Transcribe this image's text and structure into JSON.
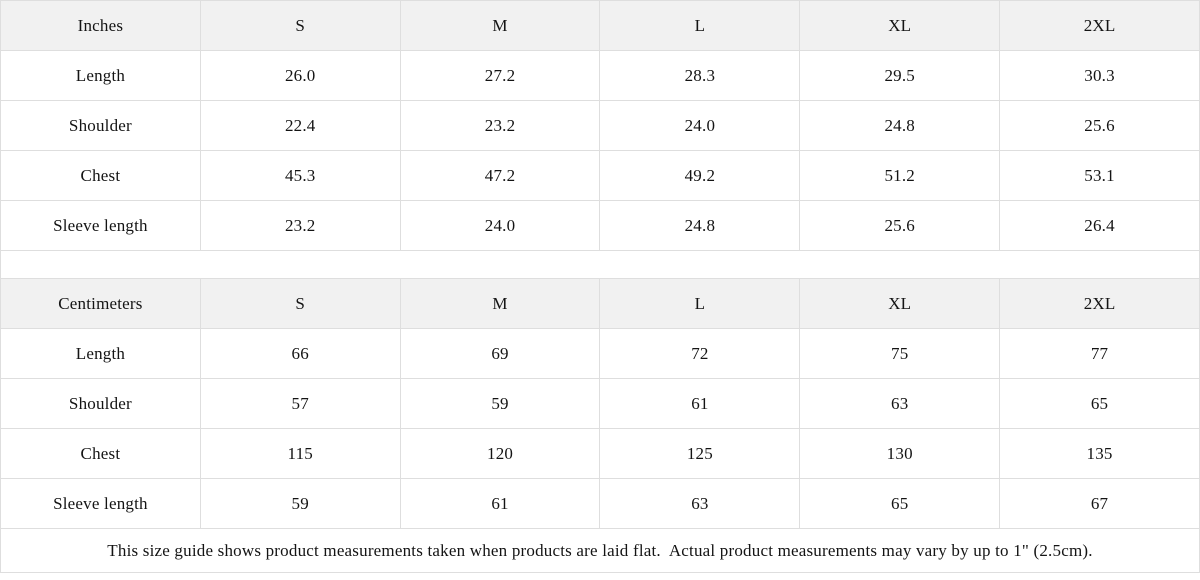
{
  "chart_data": [
    {
      "type": "table",
      "title": "Inches",
      "columns": [
        "Inches",
        "S",
        "M",
        "L",
        "XL",
        "2XL"
      ],
      "rows": [
        [
          "Length",
          "26.0",
          "27.2",
          "28.3",
          "29.5",
          "30.3"
        ],
        [
          "Shoulder",
          "22.4",
          "23.2",
          "24.0",
          "24.8",
          "25.6"
        ],
        [
          "Chest",
          "45.3",
          "47.2",
          "49.2",
          "51.2",
          "53.1"
        ],
        [
          "Sleeve length",
          "23.2",
          "24.0",
          "24.8",
          "25.6",
          "26.4"
        ]
      ]
    },
    {
      "type": "table",
      "title": "Centimeters",
      "columns": [
        "Centimeters",
        "S",
        "M",
        "L",
        "XL",
        "2XL"
      ],
      "rows": [
        [
          "Length",
          "66",
          "69",
          "72",
          "75",
          "77"
        ],
        [
          "Shoulder",
          "57",
          "59",
          "61",
          "63",
          "65"
        ],
        [
          "Chest",
          "115",
          "120",
          "125",
          "130",
          "135"
        ],
        [
          "Sleeve length",
          "59",
          "61",
          "63",
          "65",
          "67"
        ]
      ]
    }
  ],
  "footer": {
    "note": "This size guide shows product measurements taken when products are laid flat.  Actual product measurements may vary by up to 1\" (2.5cm)."
  },
  "colors": {
    "header_bg": "#f1f1f1",
    "border": "#dedede",
    "text": "#141414",
    "background": "#ffffff"
  }
}
